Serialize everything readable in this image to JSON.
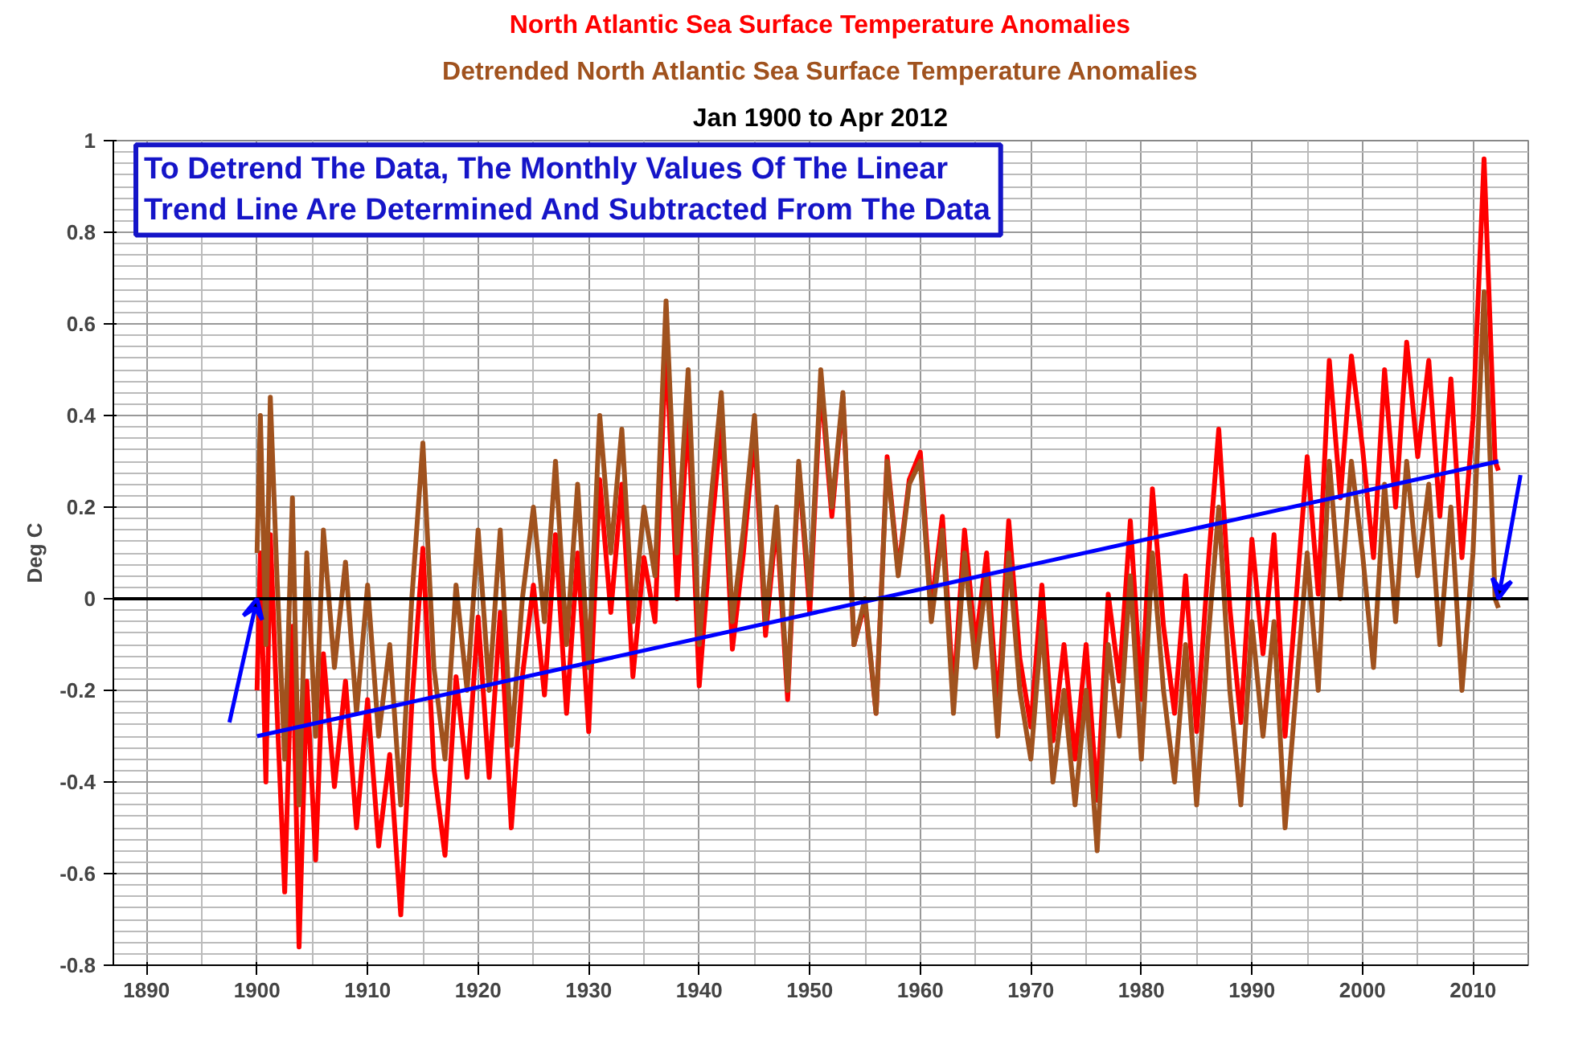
{
  "chart_data": {
    "type": "line",
    "title": "North Atlantic Sea Surface Temperature Anomalies",
    "subtitle": "Detrended North Atlantic Sea Surface Temperature Anomalies",
    "ylabel": "Deg C",
    "annotations": [
      "Jan 1900 to Apr 2012",
      "To Detrend The Data, The Monthly Values Of The Linear\nTrend Line Are Determined And Subtracted From The Data"
    ],
    "x": [
      1900.0,
      1900.3,
      1900.8,
      1901.2,
      1901.8,
      1902.5,
      1903.2,
      1903.8,
      1904.5,
      1905.3,
      1906,
      1907,
      1908,
      1909,
      1910,
      1911,
      1912,
      1913,
      1914,
      1915,
      1916,
      1917,
      1918,
      1919,
      1920,
      1921,
      1922,
      1923,
      1924,
      1925,
      1926,
      1927,
      1928,
      1929,
      1930,
      1931,
      1932,
      1933,
      1934,
      1935,
      1936,
      1937,
      1938,
      1939,
      1940,
      1941,
      1942,
      1943,
      1944,
      1945,
      1946,
      1947,
      1948,
      1949,
      1950,
      1951,
      1952,
      1953,
      1954,
      1955,
      1956,
      1957,
      1958,
      1959,
      1960,
      1961,
      1962,
      1963,
      1964,
      1965,
      1966,
      1967,
      1968,
      1969,
      1970,
      1971,
      1972,
      1973,
      1974,
      1975,
      1976,
      1977,
      1978,
      1979,
      1980,
      1981,
      1982,
      1983,
      1984,
      1985,
      1986,
      1987,
      1988,
      1989,
      1990,
      1991,
      1992,
      1993,
      1994,
      1995,
      1996,
      1997,
      1998,
      1999,
      2000,
      2001,
      2002,
      2003,
      2004,
      2005,
      2006,
      2007,
      2008,
      2009,
      2010,
      2011,
      2012,
      2012.3
    ],
    "series": [
      {
        "color": "#ff0000",
        "values": [
          -0.2,
          0.1,
          -0.4,
          0.14,
          -0.24,
          -0.64,
          -0.06,
          -0.76,
          -0.18,
          -0.57,
          -0.12,
          -0.41,
          -0.18,
          -0.5,
          -0.22,
          -0.54,
          -0.34,
          -0.69,
          -0.23,
          0.11,
          -0.37,
          -0.56,
          -0.17,
          -0.39,
          -0.04,
          -0.39,
          -0.03,
          -0.5,
          -0.17,
          0.03,
          -0.21,
          0.14,
          -0.25,
          0.1,
          -0.29,
          0.26,
          -0.03,
          0.25,
          -0.17,
          0.09,
          -0.05,
          0.56,
          0.0,
          0.41,
          -0.19,
          0.12,
          0.38,
          -0.11,
          0.1,
          0.36,
          -0.08,
          0.17,
          -0.22,
          0.29,
          -0.03,
          0.47,
          0.18,
          0.44,
          -0.1,
          -0.01,
          -0.25,
          0.31,
          0.06,
          0.26,
          0.32,
          -0.02,
          0.18,
          -0.21,
          0.15,
          -0.1,
          0.1,
          -0.24,
          0.17,
          -0.13,
          -0.28,
          0.03,
          -0.31,
          -0.1,
          -0.35,
          -0.1,
          -0.44,
          0.01,
          -0.18,
          0.17,
          -0.22,
          0.24,
          -0.06,
          -0.25,
          0.05,
          -0.29,
          0.06,
          0.37,
          -0.02,
          -0.27,
          0.13,
          -0.12,
          0.14,
          -0.3,
          0.0,
          0.31,
          0.01,
          0.52,
          0.22,
          0.53,
          0.33,
          0.09,
          0.5,
          0.2,
          0.56,
          0.31,
          0.52,
          0.18,
          0.48,
          0.09,
          0.39,
          0.96,
          0.3,
          0.28
        ]
      },
      {
        "color": "#a0521e",
        "values": [
          0.1,
          0.4,
          -0.1,
          0.44,
          0.05,
          -0.35,
          0.22,
          -0.45,
          0.1,
          -0.3,
          0.15,
          -0.15,
          0.08,
          -0.25,
          0.03,
          -0.3,
          -0.1,
          -0.45,
          0.0,
          0.34,
          -0.15,
          -0.35,
          0.03,
          -0.2,
          0.15,
          -0.2,
          0.15,
          -0.32,
          0.0,
          0.2,
          -0.05,
          0.3,
          -0.1,
          0.25,
          -0.15,
          0.4,
          0.1,
          0.37,
          -0.05,
          0.2,
          0.05,
          0.65,
          0.1,
          0.5,
          -0.1,
          0.2,
          0.45,
          -0.05,
          0.15,
          0.4,
          -0.05,
          0.2,
          -0.2,
          0.3,
          0.0,
          0.5,
          0.2,
          0.45,
          -0.1,
          0.0,
          -0.25,
          0.3,
          0.05,
          0.25,
          0.3,
          -0.05,
          0.15,
          -0.25,
          0.1,
          -0.15,
          0.05,
          -0.3,
          0.1,
          -0.2,
          -0.35,
          -0.05,
          -0.4,
          -0.2,
          -0.45,
          -0.2,
          -0.55,
          -0.1,
          -0.3,
          0.05,
          -0.35,
          0.1,
          -0.2,
          -0.4,
          -0.1,
          -0.45,
          -0.1,
          0.2,
          -0.2,
          -0.45,
          -0.05,
          -0.3,
          -0.05,
          -0.5,
          -0.2,
          0.1,
          -0.2,
          0.3,
          0.0,
          0.3,
          0.1,
          -0.15,
          0.25,
          -0.05,
          0.3,
          0.05,
          0.25,
          -0.1,
          0.2,
          -0.2,
          0.1,
          0.67,
          0.0,
          -0.02
        ]
      },
      {
        "type": "line",
        "color": "#0000ff",
        "x": [
          1900.0,
          2012.3
        ],
        "values": [
          -0.3,
          0.3
        ]
      }
    ],
    "ref_lines": [
      {
        "axis": "y",
        "value": 0,
        "color": "#000000"
      }
    ],
    "xlim": [
      1887,
      2015
    ],
    "xticks": [
      1890,
      1900,
      1910,
      1920,
      1930,
      1940,
      1950,
      1960,
      1970,
      1980,
      1990,
      2000,
      2010
    ],
    "ylim": [
      -0.8,
      1
    ],
    "yticks": [
      -0.8,
      -0.6,
      -0.4,
      -0.2,
      0,
      0.2,
      0.4,
      0.6,
      0.8,
      1
    ],
    "grid": true,
    "marker": "none",
    "line_style": "solid"
  }
}
